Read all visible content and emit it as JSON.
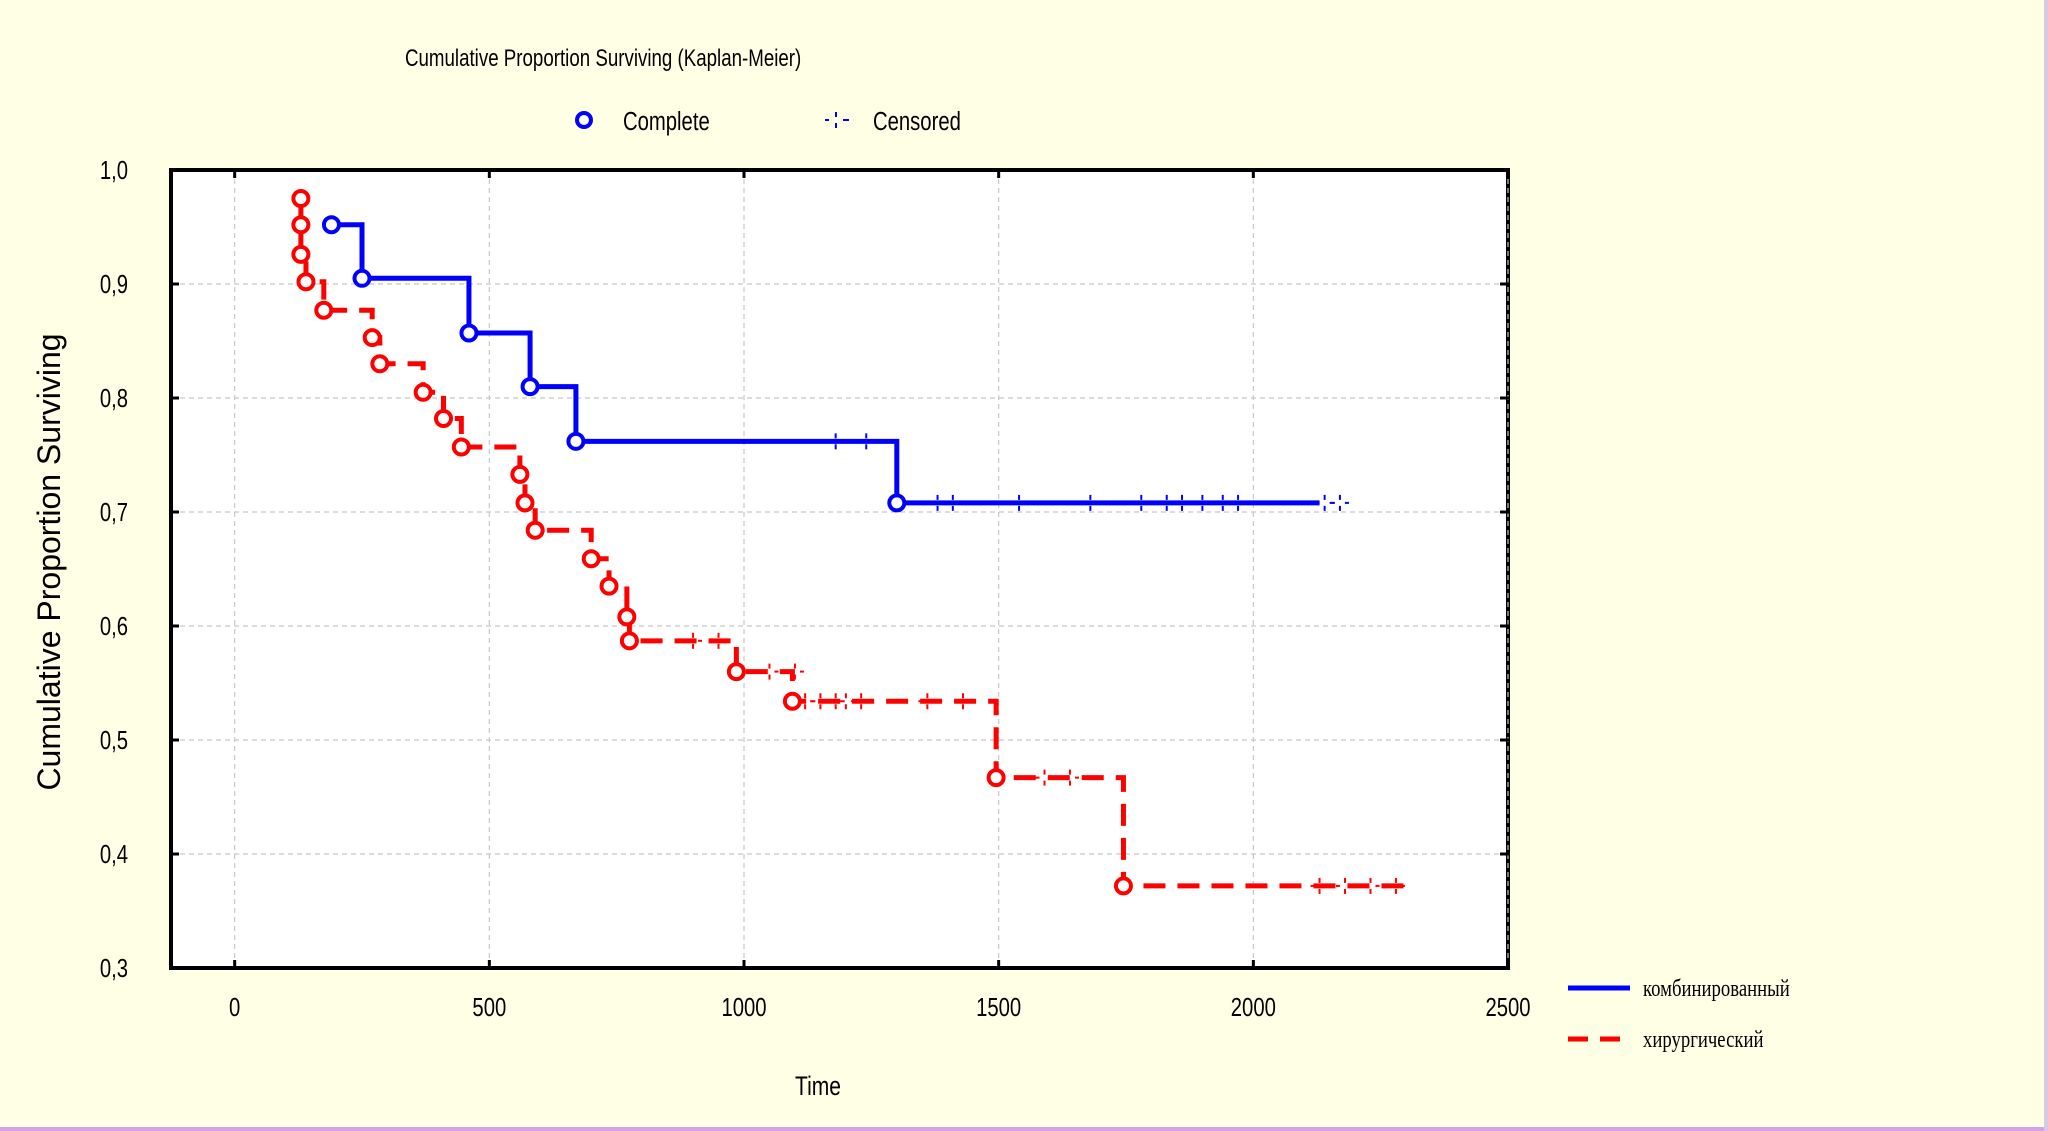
{
  "chart_data": {
    "type": "line",
    "title": "Cumulative Proportion Surviving (Kaplan-Meier)",
    "xlabel": "Time",
    "ylabel": "Cumulative Proportion Surviving",
    "xlim": [
      -125,
      2500
    ],
    "ylim": [
      0.3,
      1.0
    ],
    "xticks": [
      "0",
      "500",
      "1000",
      "1500",
      "2000",
      "2500"
    ],
    "yticks": [
      "0,3",
      "0,4",
      "0,5",
      "0,6",
      "0,7",
      "0,8",
      "0,9",
      "1,0"
    ],
    "grid": true,
    "marker_legend": {
      "complete": "Complete",
      "censored": "Censored"
    },
    "series": [
      {
        "name": "комбинированный",
        "color": "#0000ff",
        "dash": "solid",
        "steps": [
          [
            190,
            0.952
          ],
          [
            250,
            0.905
          ],
          [
            460,
            0.857
          ],
          [
            580,
            0.81
          ],
          [
            670,
            0.762
          ],
          [
            1300,
            0.708
          ],
          [
            2130,
            0.708
          ]
        ],
        "complete_events": [
          [
            190,
            0.952
          ],
          [
            250,
            0.905
          ],
          [
            460,
            0.857
          ],
          [
            580,
            0.81
          ],
          [
            670,
            0.762
          ],
          [
            1300,
            0.708
          ]
        ],
        "censored": [
          [
            1180,
            0.762
          ],
          [
            1240,
            0.762
          ],
          [
            1380,
            0.708
          ],
          [
            1410,
            0.708
          ],
          [
            1540,
            0.708
          ],
          [
            1680,
            0.708
          ],
          [
            1780,
            0.708
          ],
          [
            1830,
            0.708
          ],
          [
            1860,
            0.708
          ],
          [
            1900,
            0.708
          ],
          [
            1940,
            0.708
          ],
          [
            1970,
            0.708
          ],
          [
            2140,
            0.708
          ],
          [
            2170,
            0.708
          ]
        ]
      },
      {
        "name": "хирургический",
        "color": "#ff0000",
        "dash": "dashed",
        "steps": [
          [
            130,
            0.975
          ],
          [
            130,
            0.952
          ],
          [
            130,
            0.926
          ],
          [
            140,
            0.902
          ],
          [
            175,
            0.877
          ],
          [
            270,
            0.853
          ],
          [
            285,
            0.83
          ],
          [
            370,
            0.805
          ],
          [
            410,
            0.782
          ],
          [
            445,
            0.757
          ],
          [
            560,
            0.733
          ],
          [
            570,
            0.708
          ],
          [
            590,
            0.684
          ],
          [
            700,
            0.659
          ],
          [
            735,
            0.635
          ],
          [
            770,
            0.608
          ],
          [
            775,
            0.587
          ],
          [
            985,
            0.56
          ],
          [
            1095,
            0.534
          ],
          [
            1495,
            0.467
          ],
          [
            1745,
            0.372
          ],
          [
            2300,
            0.372
          ]
        ],
        "complete_events": [
          [
            130,
            0.975
          ],
          [
            130,
            0.952
          ],
          [
            130,
            0.926
          ],
          [
            140,
            0.902
          ],
          [
            175,
            0.877
          ],
          [
            270,
            0.853
          ],
          [
            285,
            0.83
          ],
          [
            370,
            0.805
          ],
          [
            410,
            0.782
          ],
          [
            445,
            0.757
          ],
          [
            560,
            0.733
          ],
          [
            570,
            0.708
          ],
          [
            590,
            0.684
          ],
          [
            700,
            0.659
          ],
          [
            735,
            0.635
          ],
          [
            770,
            0.608
          ],
          [
            775,
            0.587
          ],
          [
            985,
            0.56
          ],
          [
            1095,
            0.534
          ],
          [
            1495,
            0.467
          ],
          [
            1745,
            0.372
          ]
        ],
        "censored": [
          [
            900,
            0.587
          ],
          [
            950,
            0.587
          ],
          [
            1050,
            0.56
          ],
          [
            1100,
            0.56
          ],
          [
            1120,
            0.534
          ],
          [
            1150,
            0.534
          ],
          [
            1180,
            0.534
          ],
          [
            1200,
            0.534
          ],
          [
            1230,
            0.534
          ],
          [
            1360,
            0.534
          ],
          [
            1430,
            0.534
          ],
          [
            1590,
            0.467
          ],
          [
            1640,
            0.467
          ],
          [
            2130,
            0.372
          ],
          [
            2180,
            0.372
          ],
          [
            2230,
            0.372
          ],
          [
            2280,
            0.372
          ]
        ]
      }
    ]
  }
}
